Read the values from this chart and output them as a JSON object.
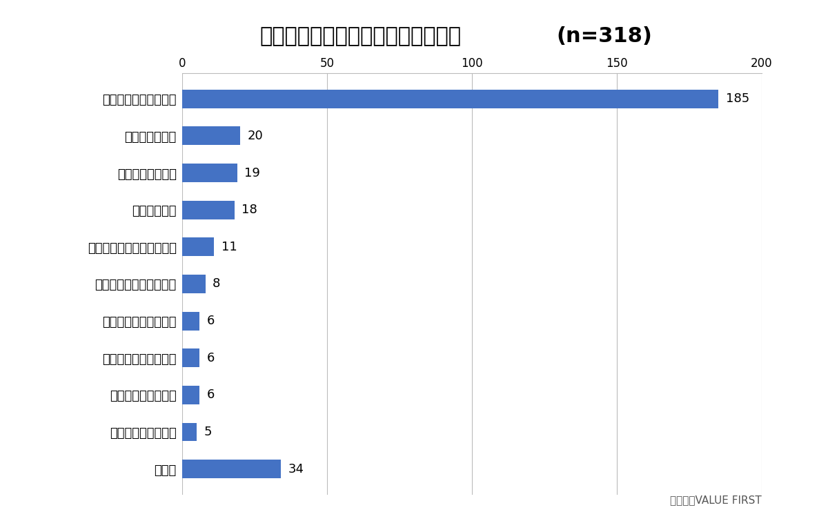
{
  "title": "問５で「なかった」と回答した理由",
  "title_n": "(n=318)",
  "categories": [
    "物価高の影響が大きい",
    "減税額が少ない",
    "生活に変化がない",
    "出費が増えた",
    "大した効果は感じられない",
    "一時的なものに過ぎない",
    "目に見える違いがない",
    "プラマイゼロに感じる",
    "控除を受けていない",
    "そもそも収入が低い",
    "その他"
  ],
  "values": [
    185,
    20,
    19,
    18,
    11,
    8,
    6,
    6,
    6,
    5,
    34
  ],
  "bar_color": "#4472C4",
  "xlim": [
    0,
    200
  ],
  "xticks": [
    0,
    50,
    100,
    150,
    200
  ],
  "background_color": "#FFFFFF",
  "title_fontsize": 22,
  "label_fontsize": 13,
  "value_fontsize": 13,
  "tick_fontsize": 12,
  "watermark": "株式会社VALUE FIRST",
  "watermark_fontsize": 11,
  "bar_height": 0.5,
  "grid_color": "#BBBBBB",
  "grid_linewidth": 0.8
}
